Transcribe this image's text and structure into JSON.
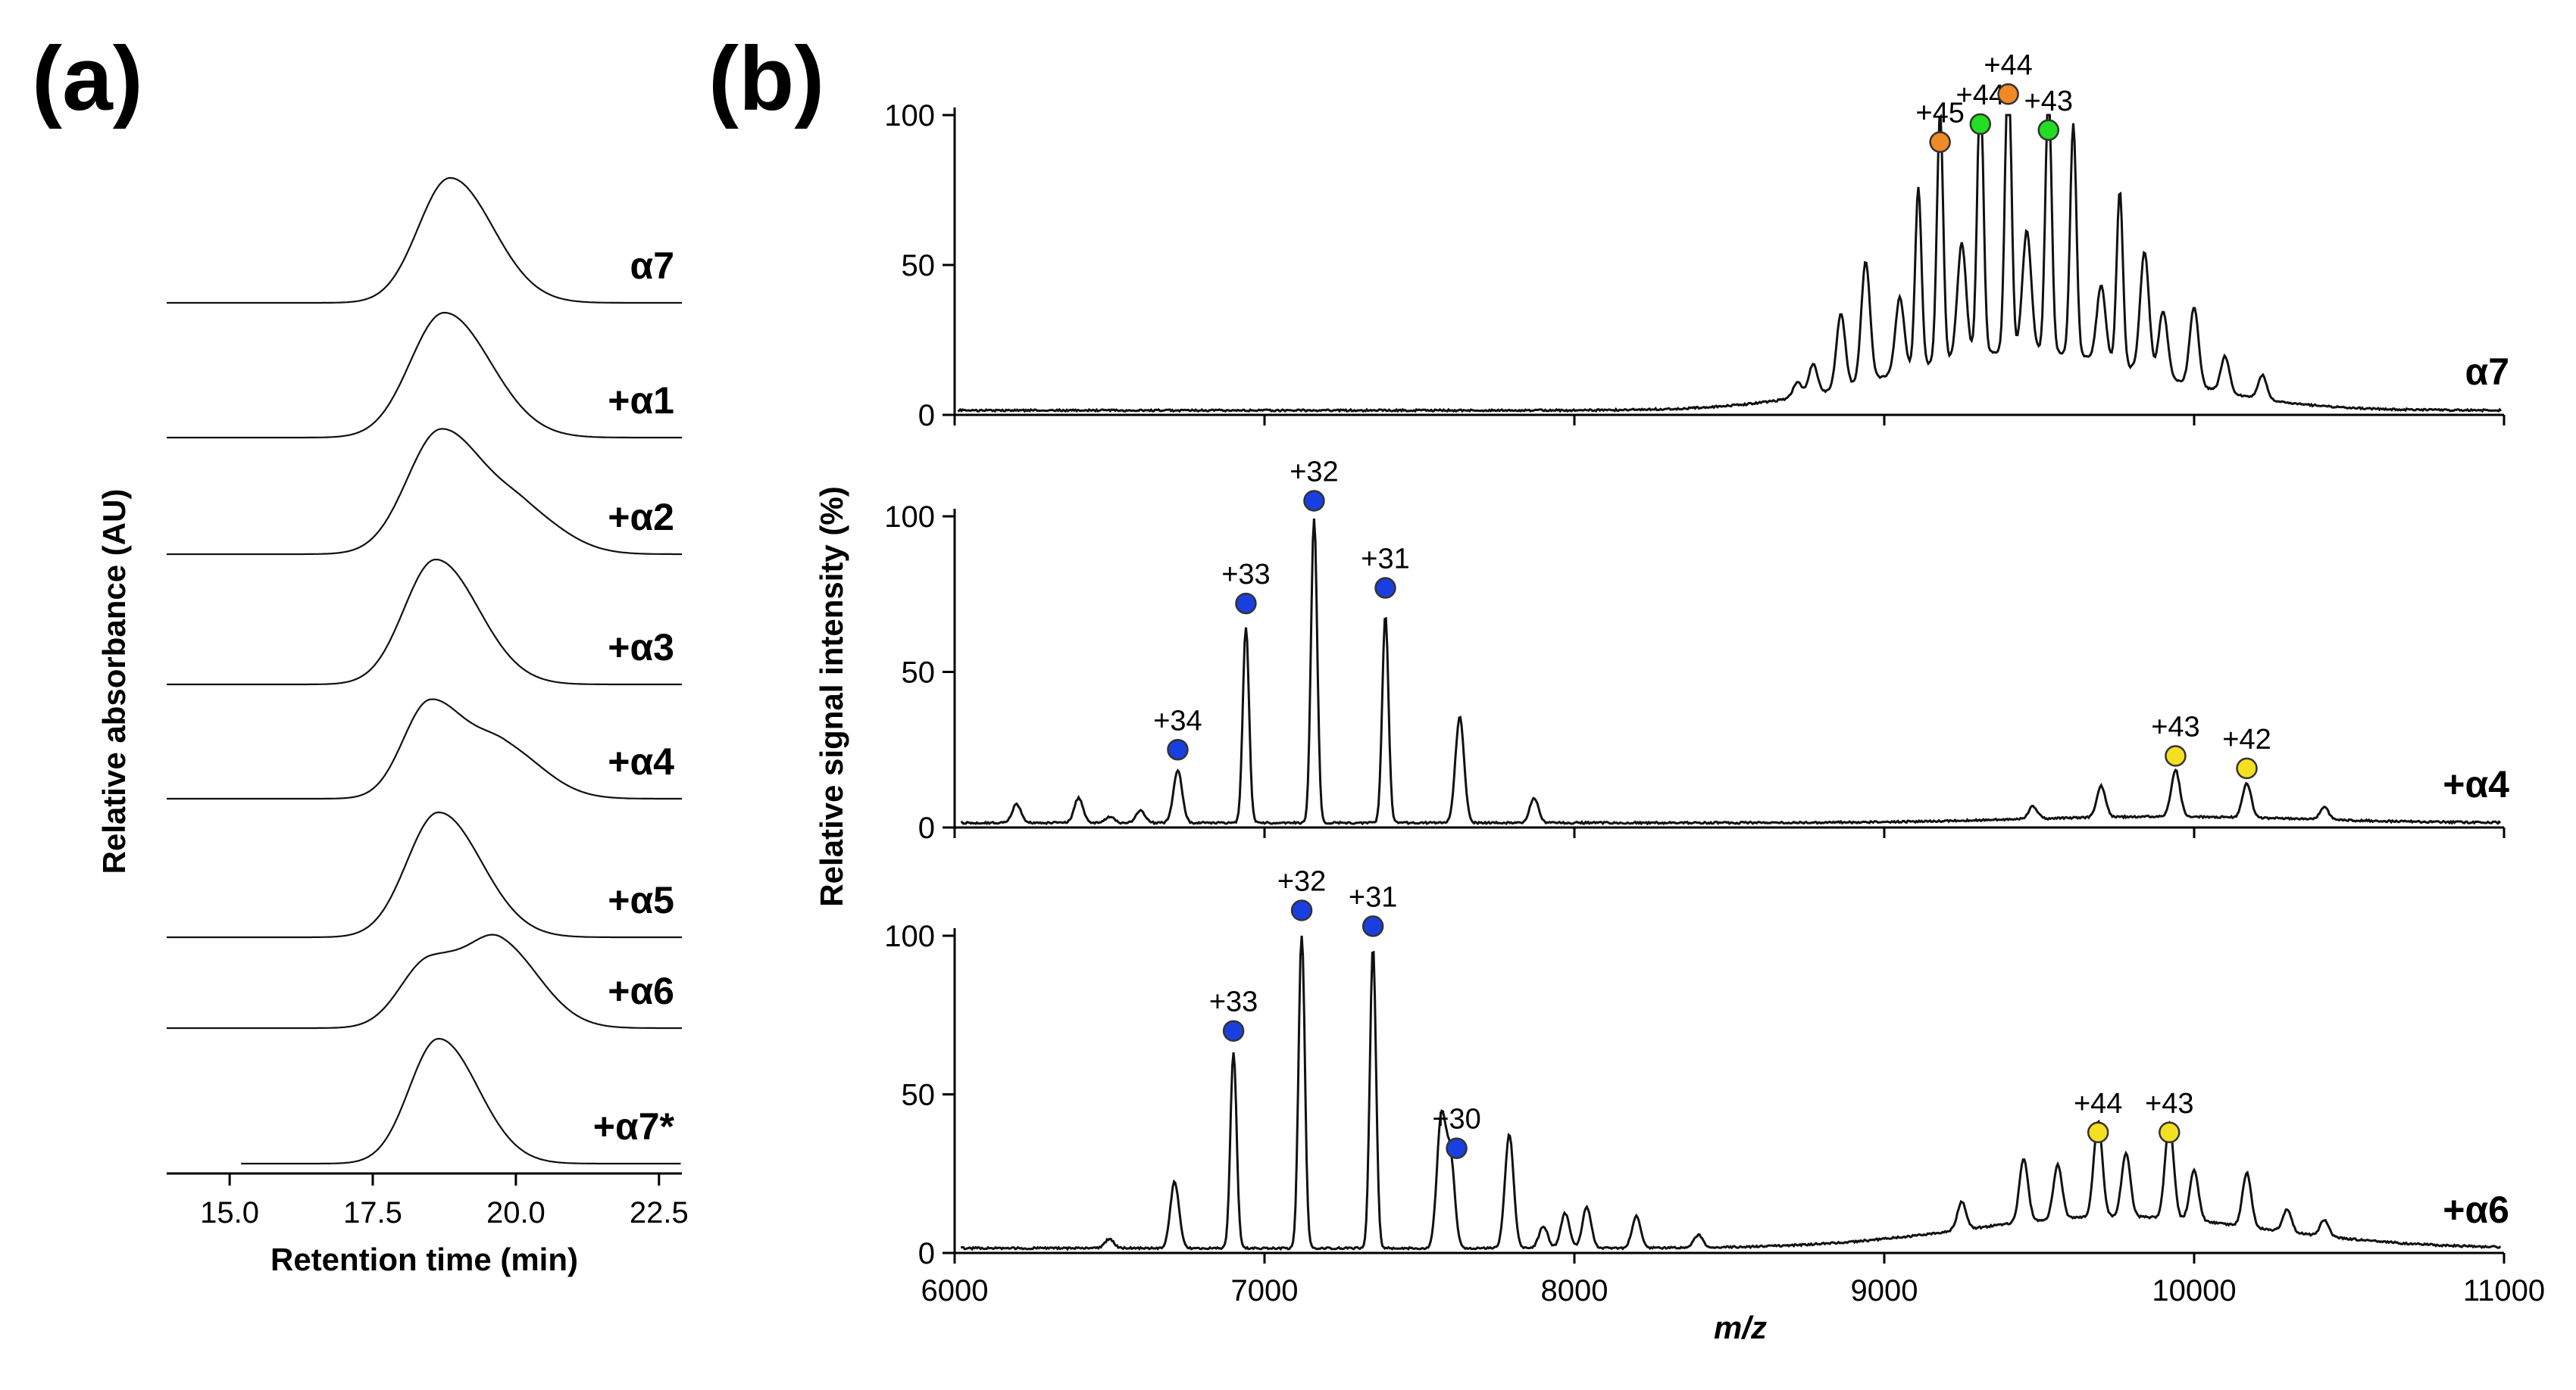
{
  "panels": {
    "a_label": "(a)",
    "b_label": "(b)"
  },
  "chart_data": [
    {
      "panel": "(a)",
      "type": "line",
      "xlabel": "Retention time (min)",
      "ylabel": "Relative absorbance (AU)",
      "xlim": [
        13.9,
        22.9
      ],
      "xticks": [
        "15.0",
        "17.5",
        "20.0",
        "22.5"
      ],
      "xtick_values": [
        15.0,
        17.5,
        20.0,
        22.5
      ],
      "grid": false,
      "stacked": true,
      "series": [
        {
          "name": "α7",
          "peaks": [
            {
              "x": 18.85,
              "height": 1.0,
              "width": 0.65
            }
          ]
        },
        {
          "name": "+α1",
          "peaks": [
            {
              "x": 18.75,
              "height": 1.0,
              "width": 0.7
            }
          ]
        },
        {
          "name": "+α2",
          "peaks": [
            {
              "x": 18.7,
              "height": 1.0,
              "width": 0.7
            },
            {
              "x": 20.2,
              "height": 0.25,
              "width": 0.6
            }
          ]
        },
        {
          "name": "+α3",
          "peaks": [
            {
              "x": 18.6,
              "height": 1.0,
              "width": 0.65
            }
          ]
        },
        {
          "name": "+α4",
          "peaks": [
            {
              "x": 18.5,
              "height": 0.78,
              "width": 0.55
            },
            {
              "x": 19.8,
              "height": 0.38,
              "width": 0.6
            }
          ]
        },
        {
          "name": "+α5",
          "peaks": [
            {
              "x": 18.65,
              "height": 1.0,
              "width": 0.65
            }
          ]
        },
        {
          "name": "+α6",
          "peaks": [
            {
              "x": 18.5,
              "height": 0.55,
              "width": 0.6
            },
            {
              "x": 19.75,
              "height": 0.62,
              "width": 0.6
            }
          ]
        },
        {
          "name": "+α7*",
          "peaks": [
            {
              "x": 18.65,
              "height": 1.0,
              "width": 0.6
            }
          ]
        }
      ]
    },
    {
      "panel": "(b)",
      "type": "line",
      "xlabel": "m/z",
      "ylabel": "Relative signal intensity (%)",
      "xlim": [
        6000,
        11000
      ],
      "ylim": [
        0,
        100
      ],
      "xticks": [
        "6000",
        "7000",
        "8000",
        "9000",
        "10000",
        "11000"
      ],
      "yticks": [
        "0",
        "50",
        "100"
      ],
      "grid": false,
      "spectra": [
        {
          "name": "α7",
          "peaks": [
            [
              8720,
              5
            ],
            [
              8770,
              10
            ],
            [
              8860,
              25
            ],
            [
              8940,
              40
            ],
            [
              9050,
              25
            ],
            [
              9110,
              60
            ],
            [
              9180,
              83
            ],
            [
              9250,
              38
            ],
            [
              9310,
              90
            ],
            [
              9400,
              100
            ],
            [
              9460,
              40
            ],
            [
              9530,
              88
            ],
            [
              9610,
              77
            ],
            [
              9700,
              25
            ],
            [
              9760,
              58
            ],
            [
              9840,
              40
            ],
            [
              9900,
              22
            ],
            [
              10000,
              26
            ],
            [
              10100,
              12
            ],
            [
              10220,
              8
            ]
          ],
          "envelope": {
            "center": 9450,
            "sigma": 420,
            "height": 20
          },
          "annotations": [
            {
              "label": "+45",
              "x": 9180,
              "y": 91,
              "color": "#f08a24"
            },
            {
              "label": "+44",
              "x": 9310,
              "y": 97,
              "color": "#22dd22"
            },
            {
              "label": "+44",
              "x": 9400,
              "y": 107,
              "color": "#f08a24"
            },
            {
              "label": "+43",
              "x": 9530,
              "y": 95,
              "color": "#22dd22"
            }
          ]
        },
        {
          "name": "+α4",
          "peaks": [
            [
              6200,
              6
            ],
            [
              6400,
              8
            ],
            [
              6500,
              2
            ],
            [
              6600,
              4
            ],
            [
              6720,
              17
            ],
            [
              6940,
              63
            ],
            [
              7160,
              98
            ],
            [
              7390,
              67
            ],
            [
              7630,
              34
            ],
            [
              7870,
              8
            ],
            [
              9480,
              4
            ],
            [
              9700,
              10
            ],
            [
              9940,
              15
            ],
            [
              10170,
              11
            ],
            [
              10420,
              4
            ]
          ],
          "envelope": {
            "center": 9900,
            "sigma": 450,
            "height": 2
          },
          "annotations": [
            {
              "label": "+34",
              "x": 6720,
              "y": 25,
              "color": "#1a3fe0"
            },
            {
              "label": "+33",
              "x": 6940,
              "y": 72,
              "color": "#1a3fe0"
            },
            {
              "label": "+32",
              "x": 7160,
              "y": 105,
              "color": "#1a3fe0"
            },
            {
              "label": "+31",
              "x": 7390,
              "y": 77,
              "color": "#1a3fe0"
            },
            {
              "label": "+43",
              "x": 9940,
              "y": 23,
              "color": "#f4e020"
            },
            {
              "label": "+42",
              "x": 10170,
              "y": 19,
              "color": "#f4e020"
            }
          ]
        },
        {
          "name": "+α6",
          "peaks": [
            [
              6500,
              3
            ],
            [
              6710,
              21
            ],
            [
              6900,
              62
            ],
            [
              7120,
              100
            ],
            [
              7350,
              95
            ],
            [
              7570,
              40
            ],
            [
              7600,
              28
            ],
            [
              7790,
              36
            ],
            [
              7900,
              7
            ],
            [
              7970,
              11
            ],
            [
              8040,
              13
            ],
            [
              8200,
              10
            ],
            [
              8400,
              4
            ],
            [
              9250,
              9
            ],
            [
              9450,
              20
            ],
            [
              9560,
              17
            ],
            [
              9690,
              30
            ],
            [
              9780,
              20
            ],
            [
              9920,
              30
            ],
            [
              10000,
              16
            ],
            [
              10170,
              17
            ],
            [
              10300,
              7
            ],
            [
              10420,
              5
            ]
          ],
          "envelope": {
            "center": 9750,
            "sigma": 480,
            "height": 10
          },
          "annotations": [
            {
              "label": "+33",
              "x": 6900,
              "y": 70,
              "color": "#1a3fe0"
            },
            {
              "label": "+32",
              "x": 7120,
              "y": 108,
              "color": "#1a3fe0"
            },
            {
              "label": "+31",
              "x": 7350,
              "y": 103,
              "color": "#1a3fe0"
            },
            {
              "label": "+30",
              "x": 7620,
              "y": 33,
              "color": "#1a3fe0"
            },
            {
              "label": "+44",
              "x": 9690,
              "y": 38,
              "color": "#f4e020"
            },
            {
              "label": "+43",
              "x": 9920,
              "y": 38,
              "color": "#f4e020"
            }
          ]
        }
      ]
    }
  ]
}
